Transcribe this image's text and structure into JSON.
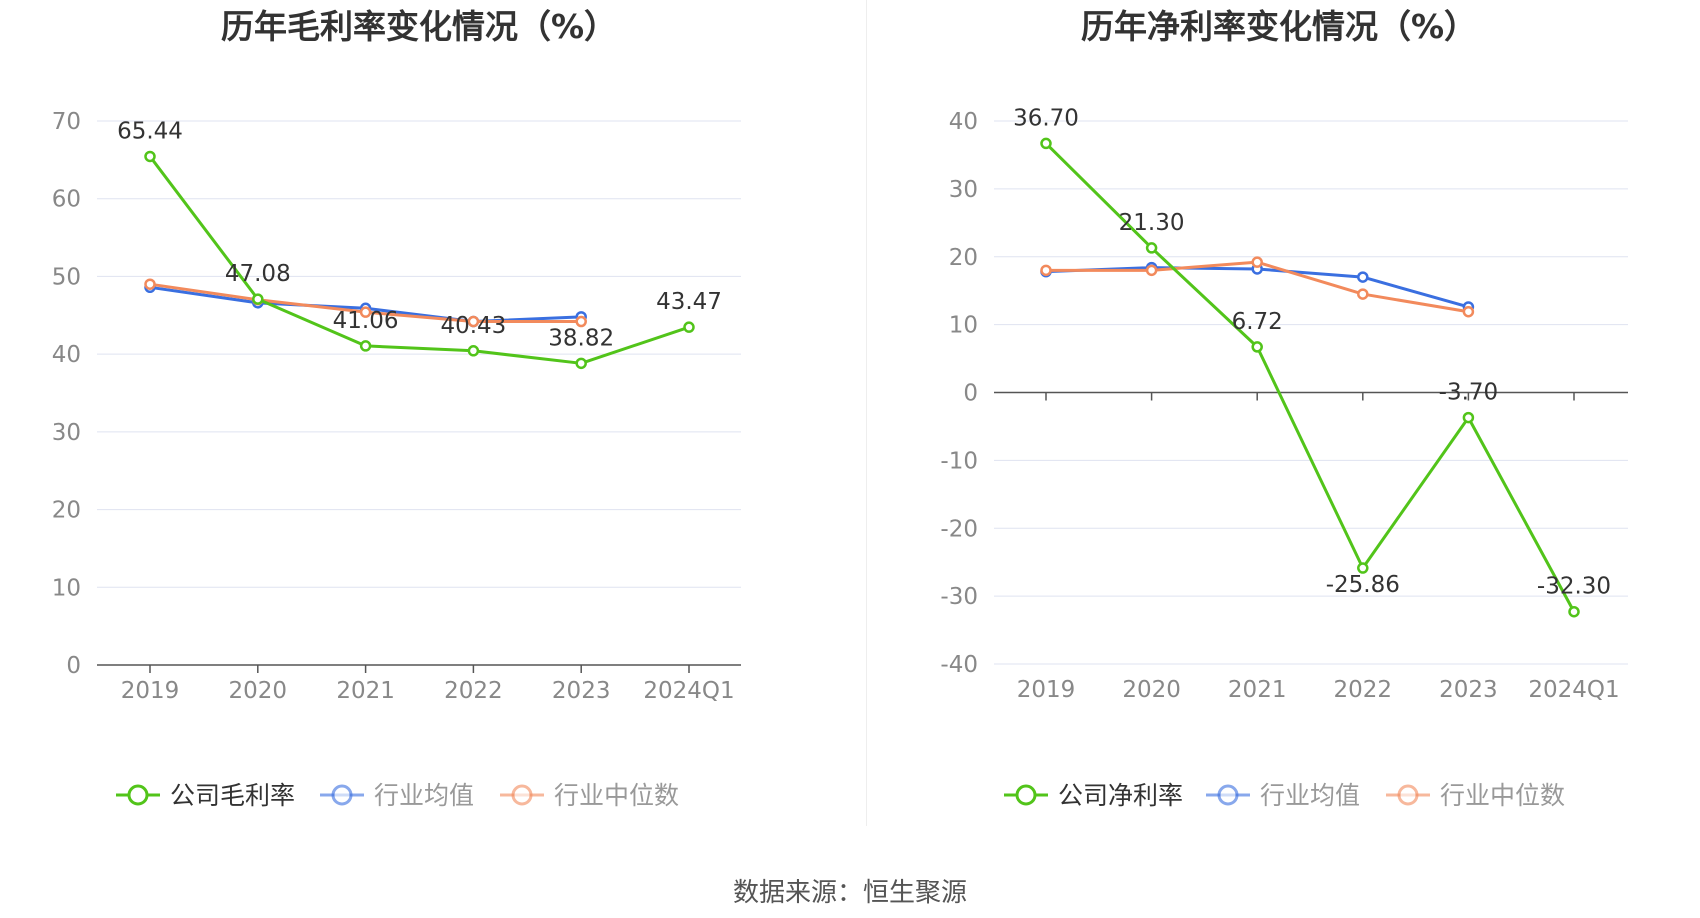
{
  "source_label": "数据来源：恒生聚源",
  "colors": {
    "company": "#52c41a",
    "industry_avg": "#3a6fe0",
    "industry_median": "#f28a5c",
    "grid": "#dfe3f0",
    "axis": "#555555",
    "tick_text": "#888888",
    "label_text": "#333333",
    "title_text": "#333333",
    "legend_text": "#333333",
    "legend_muted": "#999999"
  },
  "chart_data": [
    {
      "type": "line",
      "title": "历年毛利率变化情况（%）",
      "categories": [
        "2019",
        "2020",
        "2021",
        "2022",
        "2023",
        "2024Q1"
      ],
      "ylim": [
        0,
        70
      ],
      "yticks": [
        0,
        10,
        20,
        30,
        40,
        50,
        60,
        70
      ],
      "grid": true,
      "legend_position": "bottom",
      "series": [
        {
          "name": "公司毛利率",
          "key": "company",
          "values": [
            65.44,
            47.08,
            41.06,
            40.43,
            38.82,
            43.47
          ],
          "labels": [
            "65.44",
            "47.08",
            "41.06",
            "40.43",
            "38.82",
            "43.47"
          ]
        },
        {
          "name": "行业均值",
          "key": "industry_avg",
          "values": [
            48.6,
            46.6,
            45.9,
            44.2,
            44.8,
            null
          ]
        },
        {
          "name": "行业中位数",
          "key": "industry_median",
          "values": [
            49.0,
            47.0,
            45.4,
            44.2,
            44.2,
            null
          ]
        }
      ]
    },
    {
      "type": "line",
      "title": "历年净利率变化情况（%）",
      "categories": [
        "2019",
        "2020",
        "2021",
        "2022",
        "2023",
        "2024Q1"
      ],
      "ylim": [
        -40,
        40
      ],
      "yticks": [
        -40,
        -30,
        -20,
        -10,
        0,
        10,
        20,
        30,
        40
      ],
      "grid": true,
      "legend_position": "bottom",
      "series": [
        {
          "name": "公司净利率",
          "key": "company",
          "values": [
            36.7,
            21.3,
            6.72,
            -25.86,
            -3.7,
            -32.3
          ],
          "labels": [
            "36.70",
            "21.30",
            "6.72",
            "-25.86",
            "-3.70",
            "-32.30"
          ]
        },
        {
          "name": "行业均值",
          "key": "industry_avg",
          "values": [
            17.8,
            18.4,
            18.2,
            17.0,
            12.6,
            null
          ]
        },
        {
          "name": "行业中位数",
          "key": "industry_median",
          "values": [
            18.0,
            18.0,
            19.2,
            14.5,
            11.9,
            null
          ]
        }
      ]
    }
  ]
}
